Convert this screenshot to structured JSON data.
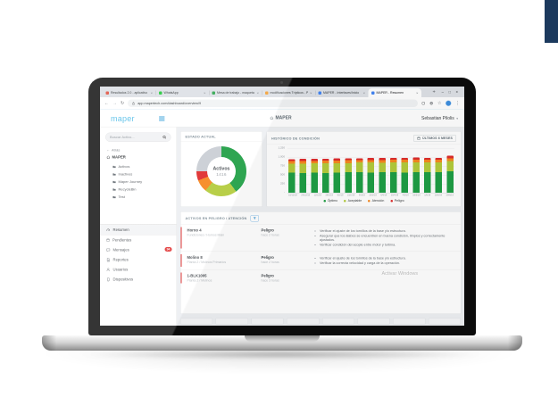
{
  "scene": {
    "watermark": "Activar Windows"
  },
  "browser": {
    "tabs": [
      {
        "title": "Resultados 2.0 - aplicativo",
        "favicon_color": "#e25a4a",
        "active": false
      },
      {
        "title": "WhatsApp",
        "favicon_color": "#28c940",
        "active": false
      },
      {
        "title": "Mesa de trabajo - maqueta",
        "favicon_color": "#34a853",
        "active": false
      },
      {
        "title": "modificaciones Trípticos - P",
        "favicon_color": "#f2a33c",
        "active": false
      },
      {
        "title": "MAPER - Interfaces/Inicio",
        "favicon_color": "#4285f4",
        "active": false
      },
      {
        "title": "MAPER - Resumen",
        "favicon_color": "#4285f4",
        "active": true
      }
    ],
    "tab_close_glyph": "×",
    "new_tab_label": "+",
    "controls": {
      "minimize": "–",
      "maximize": "□",
      "close": "×"
    },
    "nav": {
      "back": "←",
      "forward": "→",
      "refresh": "↻",
      "url": "app.mapertech.com/dashboard/overview/9",
      "menu": "⋮"
    }
  },
  "header": {
    "logo": "maper",
    "title": "MAPER",
    "user": "Sebastian Pilolis",
    "user_chevron": "▾"
  },
  "sidebar": {
    "search_placeholder": "Buscar Activo...",
    "tree": {
      "back_arrow": "←",
      "back_label": "Atrás",
      "node": "MAPER"
    },
    "folders": [
      "Activos",
      "Inactivos",
      "Maper Journey",
      "RecycleBin",
      "Test"
    ],
    "menu": [
      {
        "label": "Resumen",
        "icon": "gauge-icon",
        "active": true,
        "badge": ""
      },
      {
        "label": "Pendientes",
        "icon": "calendar-icon",
        "active": false,
        "badge": ""
      },
      {
        "label": "Mensajes",
        "icon": "chat-icon",
        "active": false,
        "badge": "94"
      },
      {
        "label": "Reportes",
        "icon": "report-icon",
        "active": false,
        "badge": ""
      },
      {
        "label": "Usuarios",
        "icon": "user-icon",
        "active": false,
        "badge": ""
      },
      {
        "label": "Dispositivos",
        "icon": "device-icon",
        "active": false,
        "badge": ""
      }
    ]
  },
  "chart_data": [
    {
      "type": "pie",
      "title": "ESTADO ACTUAL",
      "center_label": "Activos",
      "center_value": "1416",
      "slices": [
        {
          "label": "Óptimo",
          "value": 40,
          "color": "#1e9e44"
        },
        {
          "label": "Aceptable",
          "value": 21,
          "color": "#b3cb3b"
        },
        {
          "label": "Atención",
          "value": 8,
          "color": "#f6881f"
        },
        {
          "label": "Peligro",
          "value": 6,
          "color": "#df2b2b"
        },
        {
          "label": "",
          "value": 25,
          "color": "#c9ced4"
        }
      ]
    },
    {
      "type": "bar",
      "stacked": true,
      "title": "HISTÓRICO DE CONDICIÓN",
      "button_label": "ÚLTIMOS 6 MESES",
      "ylim": [
        0,
        1250
      ],
      "yticks": [
        "1,250",
        "1,000",
        "750",
        "500",
        "250",
        "-"
      ],
      "grid": true,
      "legend_position": "bottom",
      "categories": [
        "15/12/18",
        "29/12/18",
        "12/1/19",
        "26/1/19",
        "9/2/19",
        "23/2/19",
        "9/3/19",
        "23/3/19",
        "6/4/19",
        "20/4/19",
        "4/5/19",
        "18/5/19",
        "1/6/19",
        "15/6/19",
        "29/6/19"
      ],
      "series": [
        {
          "name": "Óptimo",
          "color": "#1e9e44",
          "values": [
            560,
            545,
            565,
            555,
            560,
            570,
            575,
            565,
            570,
            575,
            565,
            580,
            570,
            575,
            595
          ]
        },
        {
          "name": "Aceptable",
          "color": "#b3cb3b",
          "values": [
            250,
            270,
            255,
            270,
            270,
            260,
            270,
            280,
            270,
            275,
            280,
            270,
            285,
            275,
            295
          ]
        },
        {
          "name": "Atención",
          "color": "#f6881f",
          "values": [
            75,
            70,
            68,
            78,
            70,
            78,
            72,
            68,
            78,
            70,
            78,
            72,
            68,
            78,
            75
          ]
        },
        {
          "name": "Peligro",
          "color": "#df2b2b",
          "values": [
            55,
            60,
            58,
            52,
            60,
            55,
            52,
            60,
            52,
            58,
            52,
            60,
            58,
            52,
            68
          ]
        }
      ]
    }
  ],
  "alerts": {
    "title": "ACTIVOS EN PELIGRO / ATENCIÓN",
    "rows": [
      {
        "name": "Horno 4",
        "location": "Fundiciones / Hornos Main",
        "status": "Peligro",
        "time": "hace 2 horas",
        "actions": [
          "Verificar el ajuste de los tornillos de la base y/o estructura.",
          "Asegurar que los álabes se encuentren en buena condición, limpios y correctamente ajustados.",
          "Verificar condición del acople entre motor y turbina."
        ]
      },
      {
        "name": "Molino 8",
        "location": "Planta 2 / Molinos Primarios",
        "status": "Peligro",
        "time": "hace 2 horas",
        "actions": [
          "Verificar el ajuste de los tornillos de la base y/o estructura.",
          "Verificar la correcta velocidad y carga de la operación."
        ]
      },
      {
        "name": "1-BLK1005",
        "location": "Planta 2 / Molinos",
        "status": "Peligro",
        "time": "hace 3 horas",
        "actions": []
      }
    ]
  }
}
